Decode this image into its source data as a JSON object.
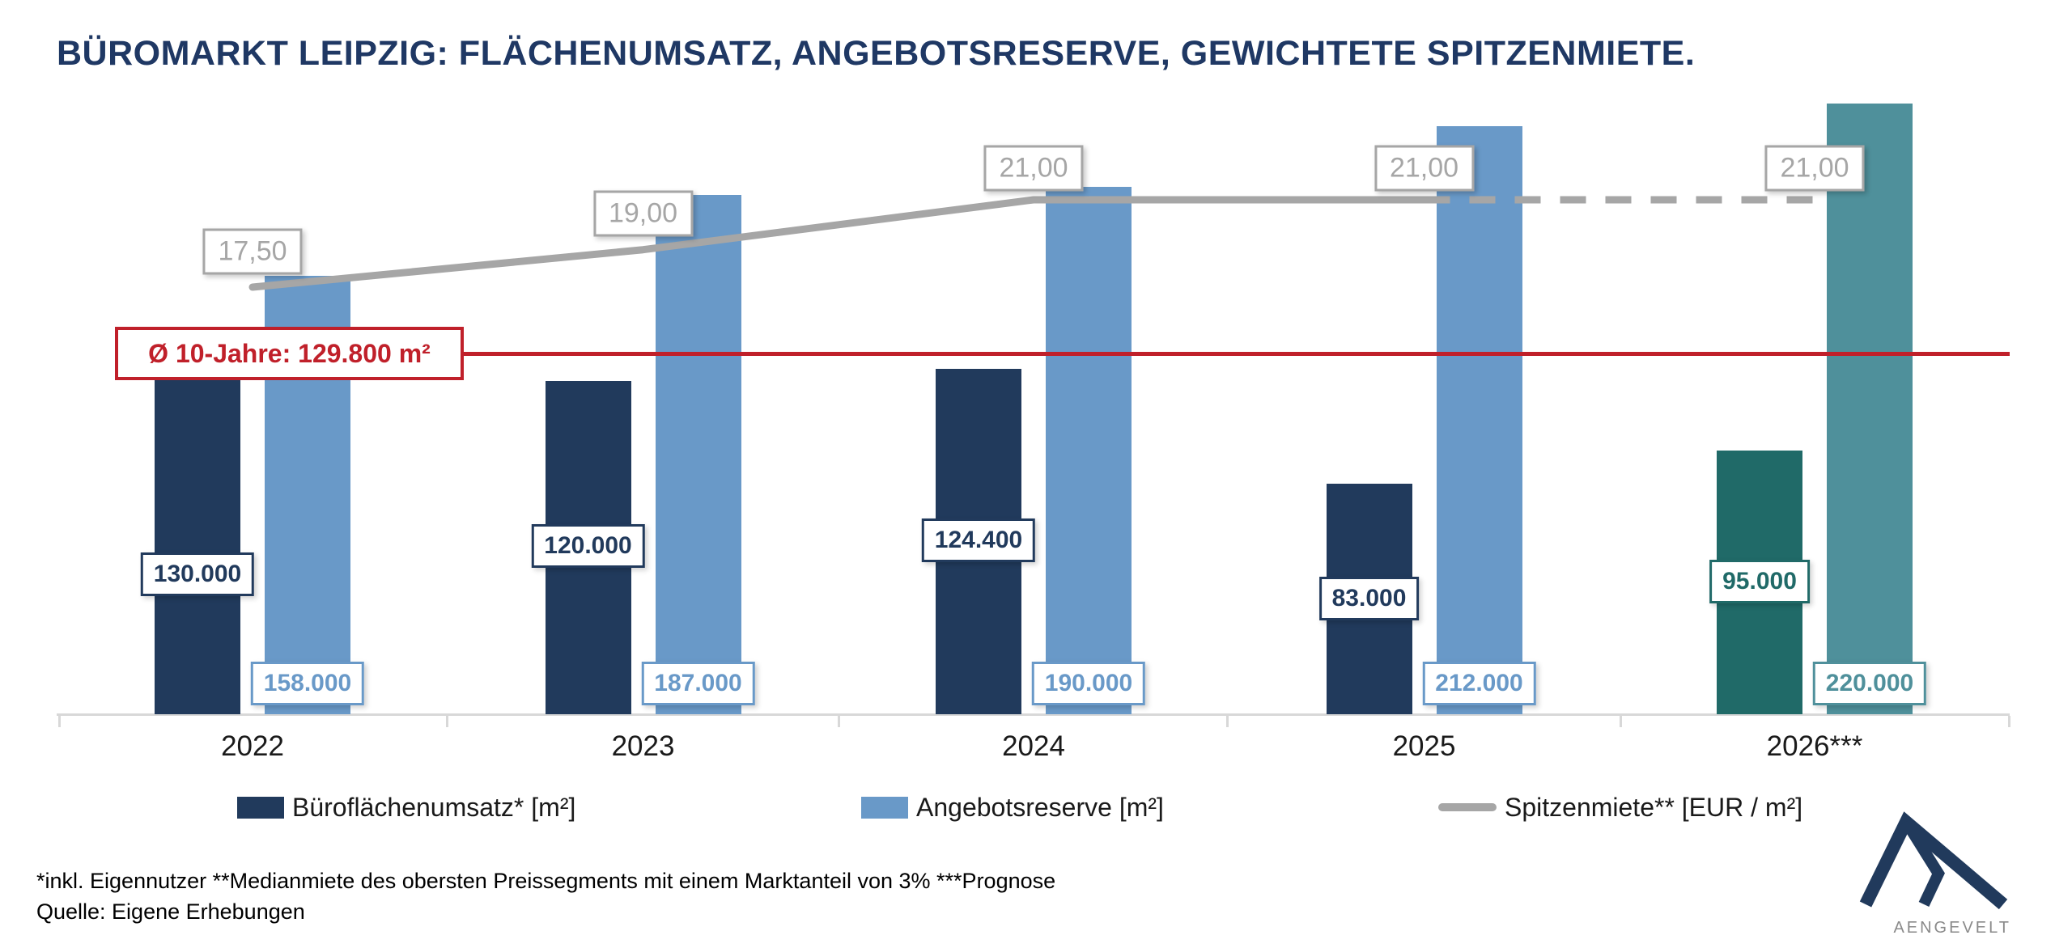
{
  "title": "BÜROMARKT LEIPZIG: FLÄCHENUMSATZ, ANGEBOTSRESERVE, GEWICHTETE SPITZENMIETE.",
  "chart_data": {
    "type": "combo-bar-line",
    "categories": [
      "2022",
      "2023",
      "2024",
      "2025",
      "2026***"
    ],
    "series": [
      {
        "name": "Büroflächenumsatz* [m²]",
        "type": "bar",
        "values": [
          130000,
          120000,
          124400,
          83000,
          95000
        ],
        "labels": [
          "130.000",
          "120.000",
          "124.400",
          "83.000",
          "95.000"
        ]
      },
      {
        "name": "Angebotsreserve [m²]",
        "type": "bar",
        "values": [
          158000,
          187000,
          190000,
          212000,
          220000
        ],
        "labels": [
          "158.000",
          "187.000",
          "190.000",
          "212.000",
          "220.000"
        ]
      },
      {
        "name": "Spitzenmiete** [EUR / m²]",
        "type": "line",
        "values": [
          17.5,
          19.0,
          21.0,
          21.0,
          21.0
        ],
        "labels": [
          "17,50",
          "19,00",
          "21,00",
          "21,00",
          "21,00"
        ],
        "dashed_from_index": 3
      }
    ],
    "average_line": {
      "value": 129800,
      "label": "Ø 10-Jahre: 129.800 m²"
    },
    "forecast_category_index": 4,
    "colors": {
      "umsatz": "#213A5C",
      "reserve": "#6999C8",
      "umsatz_forecast": "#206A68",
      "reserve_forecast": "#4F909B",
      "line": "#A6A6A6",
      "average": "#C0202A",
      "title": "#1F3864",
      "axis": "#D8D8D8"
    },
    "legend_position": "bottom",
    "grid": false
  },
  "footnote": "*inkl. Eigennutzer **Medianmiete des obersten Preissegments mit einem Marktanteil von 3% ***Prognose",
  "source": "Quelle: Eigene Erhebungen",
  "logo": {
    "text": "AENGEVELT"
  }
}
